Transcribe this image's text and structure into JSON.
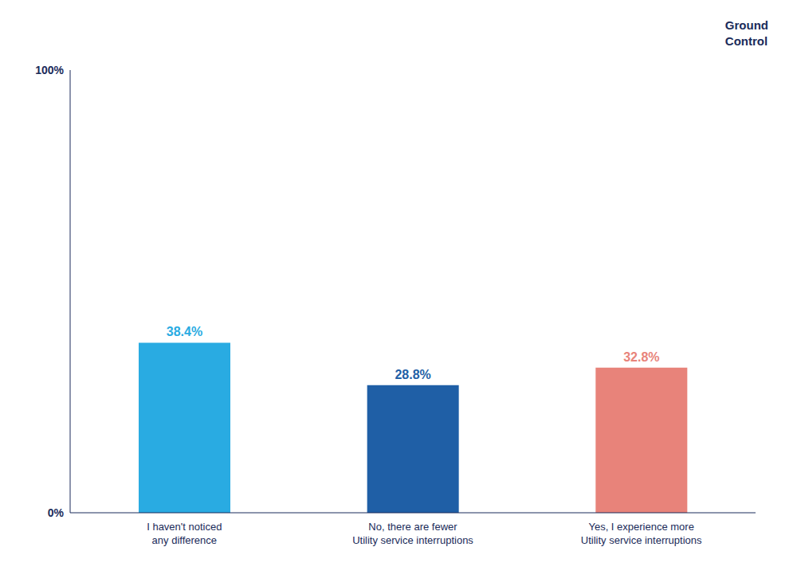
{
  "chart_data": {
    "type": "bar",
    "categories": [
      "I haven't noticed\nany difference",
      "No, there are fewer\nUtility service interruptions",
      "Yes, I experience more\nUtility service interruptions"
    ],
    "values": [
      38.4,
      28.8,
      32.8
    ],
    "value_labels": [
      "38.4%",
      "28.8%",
      "32.8%"
    ],
    "data_labels": true,
    "colors": [
      "#29ABE2",
      "#1F5FA6",
      "#E8837A"
    ],
    "ylim": [
      0,
      100
    ],
    "yticks": [
      {
        "value": 0,
        "label": "0%"
      },
      {
        "value": 100,
        "label": "100%"
      }
    ],
    "grid": false,
    "annotations": [
      "Ground\nControl"
    ]
  }
}
